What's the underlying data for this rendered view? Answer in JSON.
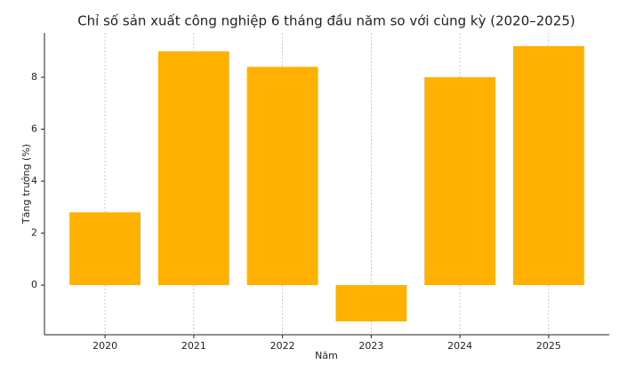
{
  "chart_data": {
    "type": "bar",
    "title": "Chỉ số sản xuất công nghiệp 6 tháng đầu năm so với cùng kỳ (2020–2025)",
    "xlabel": "Năm",
    "ylabel": "Tăng trưởng (%)",
    "categories": [
      "2020",
      "2021",
      "2022",
      "2023",
      "2024",
      "2025"
    ],
    "values": [
      2.8,
      9.0,
      8.4,
      -1.4,
      8.0,
      9.2
    ],
    "color": "#ffb000",
    "ylim": [
      -1.91,
      9.71
    ],
    "yticks": [
      0,
      2,
      4,
      6,
      8
    ],
    "grid": {
      "x": true,
      "y": false
    }
  }
}
